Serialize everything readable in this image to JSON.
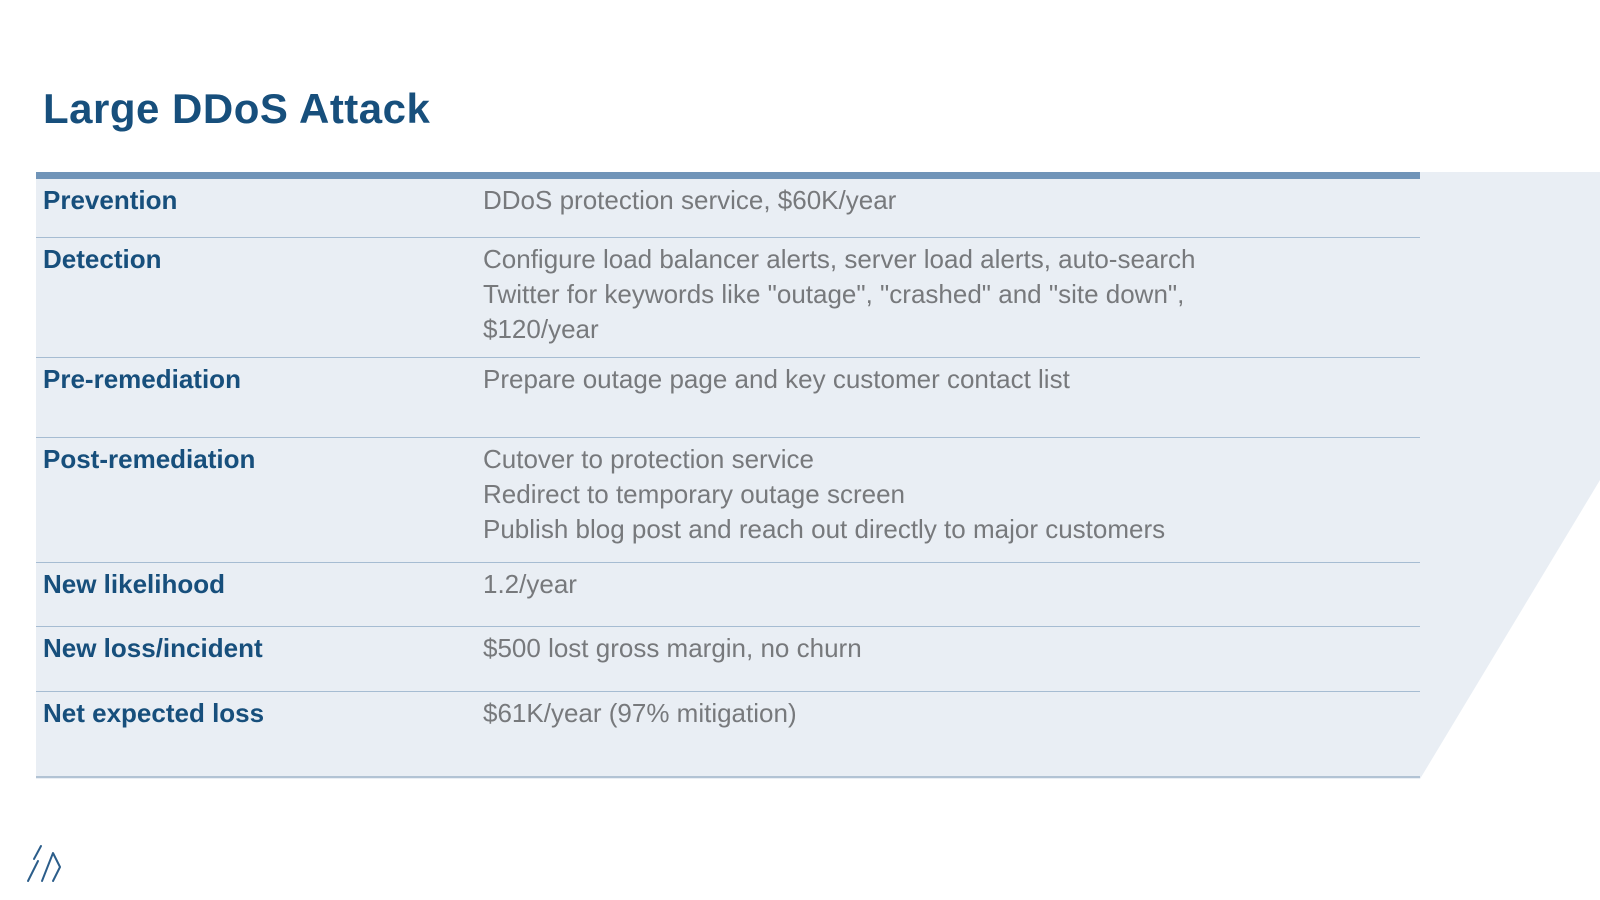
{
  "slide": {
    "title": "Large DDoS Attack",
    "table": {
      "rows": [
        {
          "label": "Prevention",
          "lines": [
            "DDoS protection service, $60K/year"
          ]
        },
        {
          "label": "Detection",
          "lines": [
            "Configure load balancer alerts, server load alerts, auto-search",
            "Twitter for keywords like \"outage\", \"crashed\" and \"site down\",",
            "$120/year"
          ]
        },
        {
          "label": "Pre-remediation",
          "lines": [
            "Prepare outage page and key customer contact list"
          ]
        },
        {
          "label": "Post-remediation",
          "lines": [
            "Cutover to protection service",
            "Redirect to temporary outage screen",
            "Publish blog post and reach out directly to major customers"
          ]
        },
        {
          "label": "New likelihood",
          "lines": [
            "1.2/year"
          ]
        },
        {
          "label": "New loss/incident",
          "lines": [
            "$500 lost gross margin, no churn"
          ]
        },
        {
          "label": "Net expected loss",
          "lines": [
            "$61K/year (97% mitigation)"
          ]
        }
      ]
    },
    "logo_icon": "diagonal-slashes-logo",
    "colors": {
      "accent_navy": "#174F7C",
      "panel_bg": "#E9EEF4",
      "table_top_border": "#7094B8",
      "row_separator": "#A6BCD2",
      "value_gray": "#77797C"
    }
  }
}
